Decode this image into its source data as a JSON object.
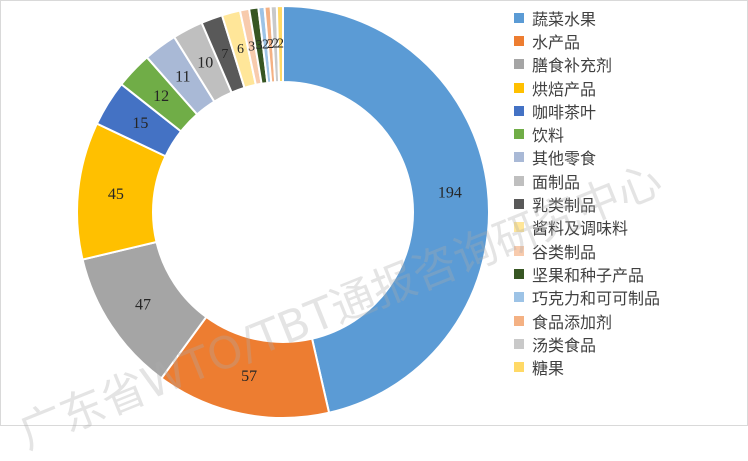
{
  "chart_data": {
    "type": "pie",
    "variant": "doughnut",
    "legend_position": "right",
    "slices": [
      {
        "label": "蔬菜水果",
        "value": 194,
        "color": "#5b9bd5"
      },
      {
        "label": "水产品",
        "value": 57,
        "color": "#ed7d31"
      },
      {
        "label": "膳食补充剂",
        "value": 47,
        "color": "#a5a5a5"
      },
      {
        "label": "烘焙产品",
        "value": 45,
        "color": "#ffc000"
      },
      {
        "label": "咖啡茶叶",
        "value": 15,
        "color": "#4472c4"
      },
      {
        "label": "饮料",
        "value": 12,
        "color": "#70ad47"
      },
      {
        "label": "其他零食",
        "value": 11,
        "color": "#a9b9d6"
      },
      {
        "label": "面制品",
        "value": 10,
        "color": "#bfbfbf"
      },
      {
        "label": "乳类制品",
        "value": 7,
        "color": "#595959"
      },
      {
        "label": "酱料及调味料",
        "value": 6,
        "color": "#ffe699"
      },
      {
        "label": "谷类制品",
        "value": 3,
        "color": "#f8cbad"
      },
      {
        "label": "坚果和种子产品",
        "value": 3,
        "color": "#375623"
      },
      {
        "label": "巧克力和可可制品",
        "value": 2,
        "color": "#9dc3e6"
      },
      {
        "label": "食品添加剂",
        "value": 2,
        "color": "#f4b183"
      },
      {
        "label": "汤类食品",
        "value": 2,
        "color": "#c9c9c9"
      },
      {
        "label": "糖果",
        "value": 2,
        "color": "#ffd966"
      }
    ]
  },
  "watermark": "广东省WTO/TBT通报咨询研究中心"
}
